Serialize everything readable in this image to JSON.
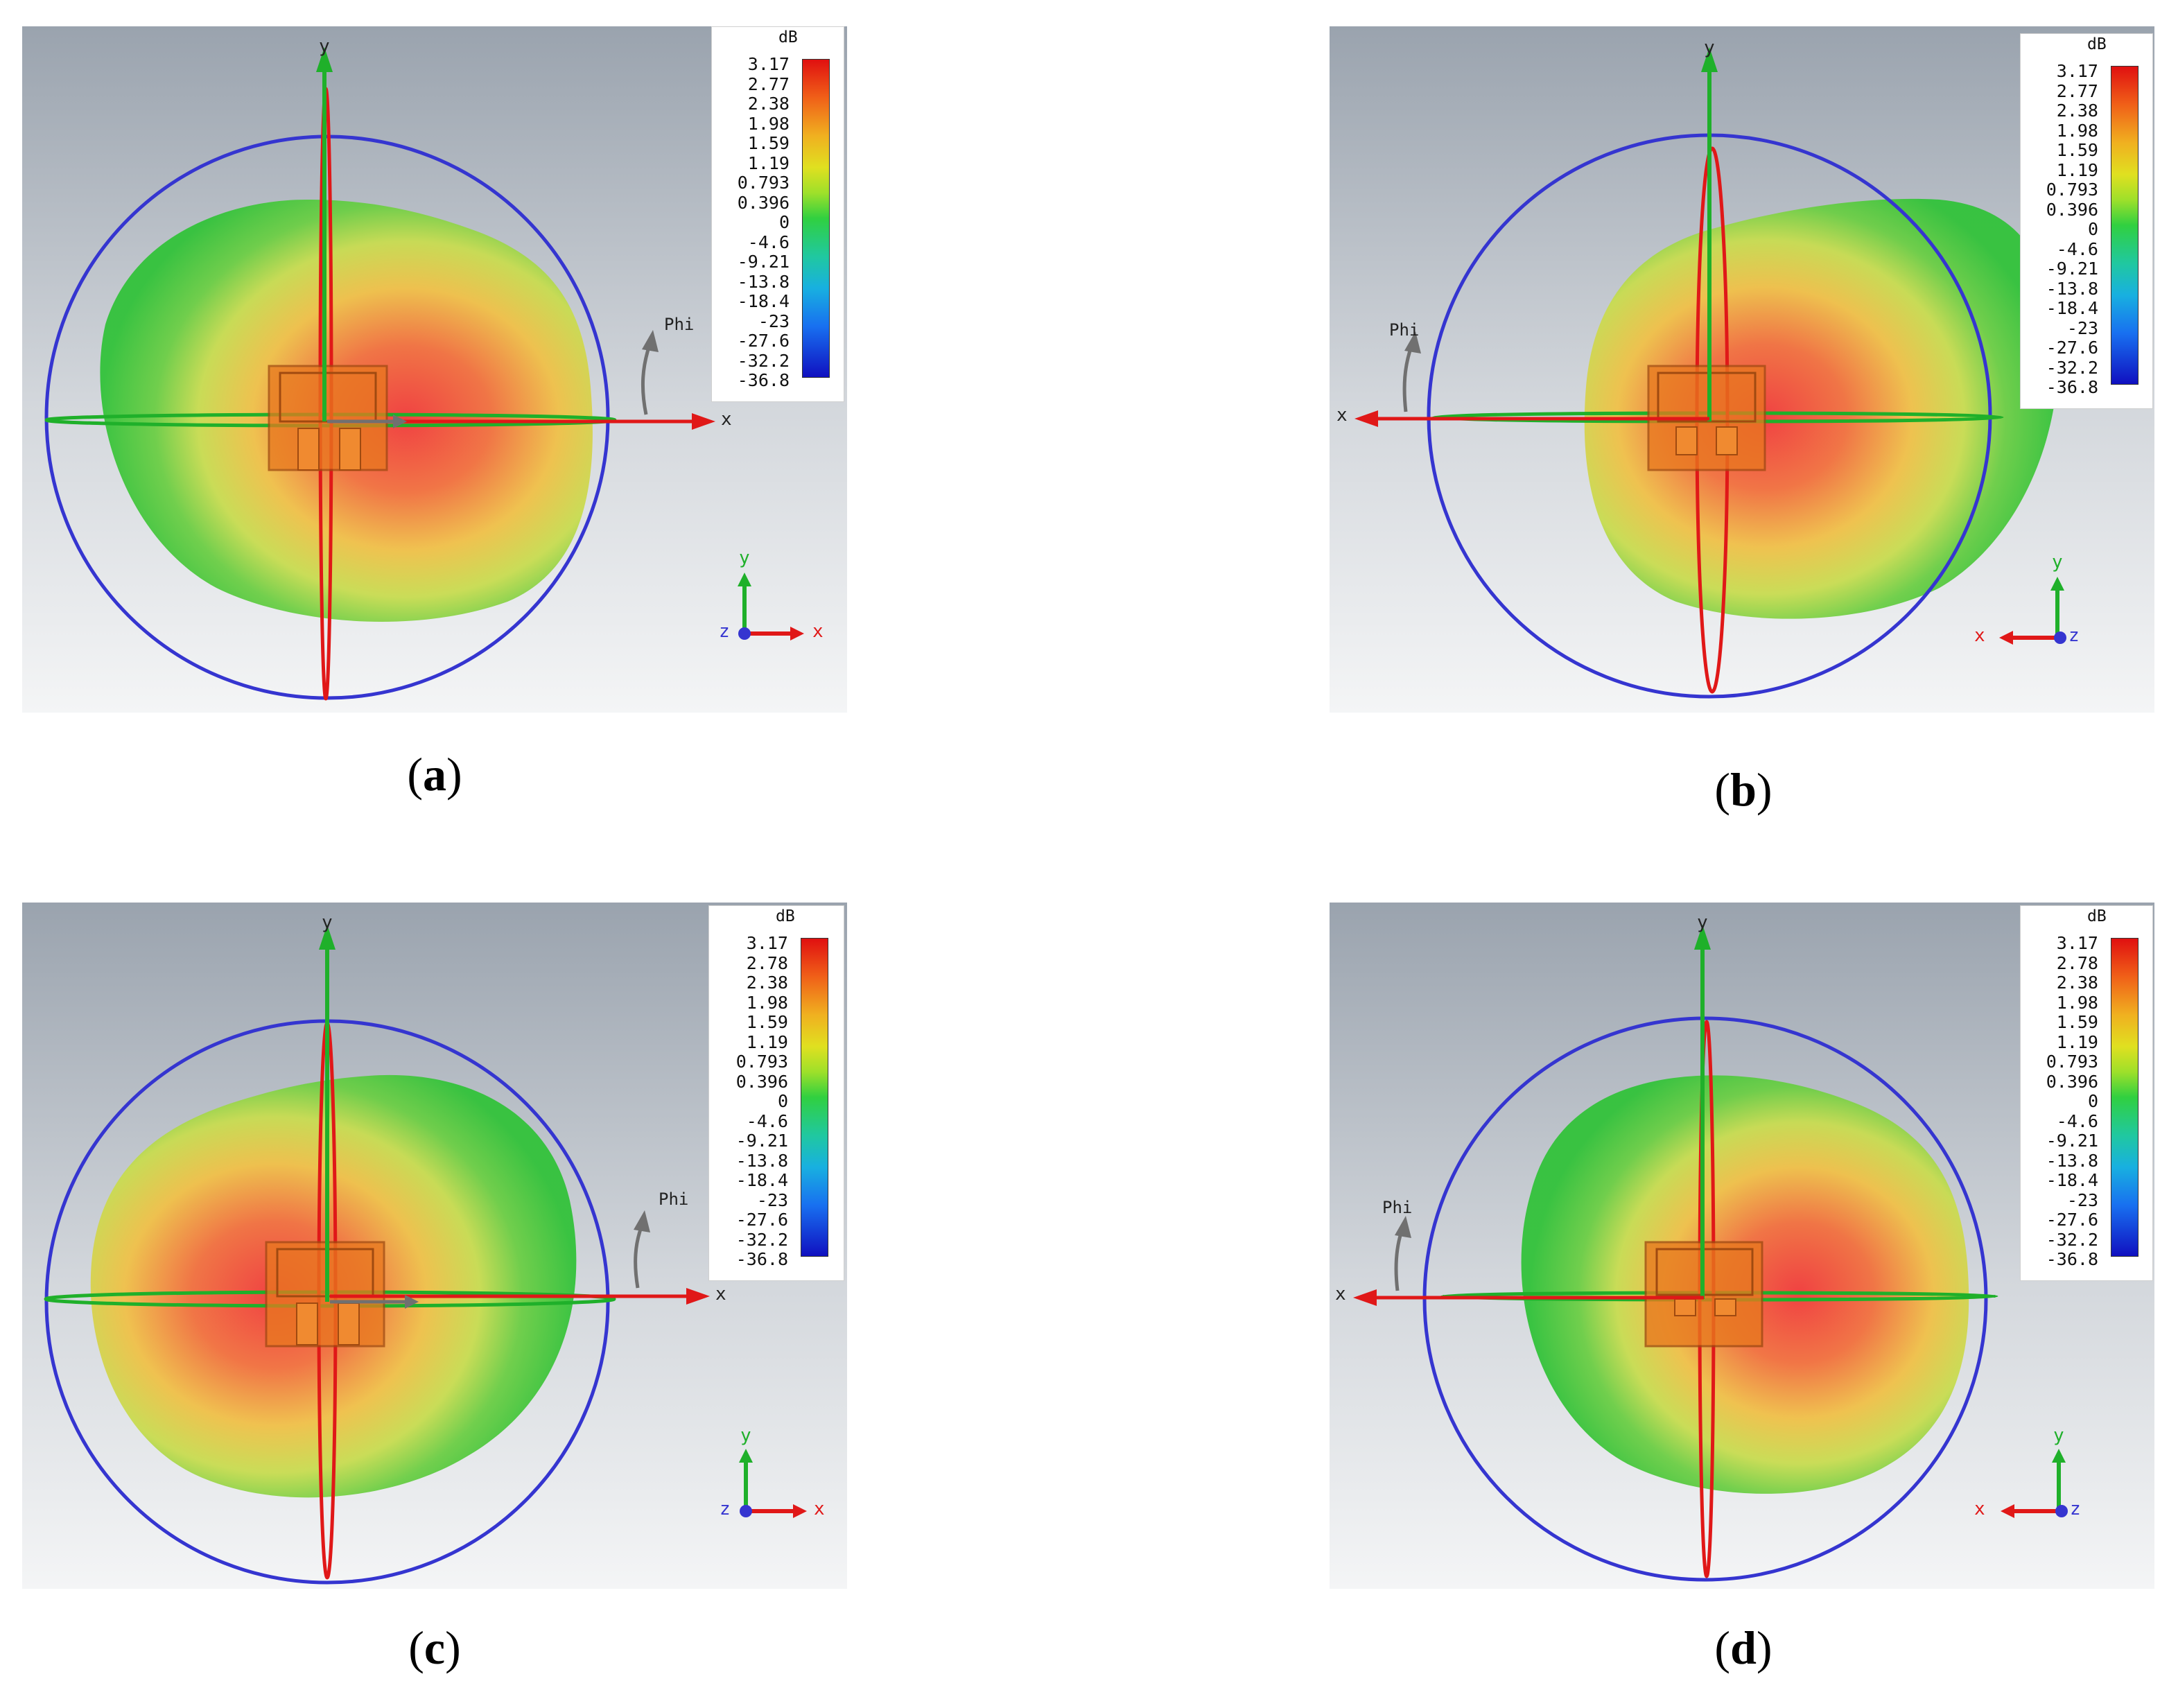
{
  "panels": [
    {
      "id": "a",
      "caption": "a",
      "legend_unit": "dB",
      "legend_values": [
        "3.17",
        "2.77",
        "2.38",
        "1.98",
        "1.59",
        "1.19",
        "0.793",
        "0.396",
        "0",
        "-4.6",
        "-9.21",
        "-13.8",
        "-18.4",
        "-23",
        "-27.6",
        "-32.2",
        "-36.8"
      ],
      "axis_y": "y",
      "axis_x": "x",
      "phi_label": "Phi",
      "mini_y": "y",
      "mini_x": "x",
      "mini_z": "z"
    },
    {
      "id": "b",
      "caption": "b",
      "legend_unit": "dB",
      "legend_values": [
        "3.17",
        "2.77",
        "2.38",
        "1.98",
        "1.59",
        "1.19",
        "0.793",
        "0.396",
        "0",
        "-4.6",
        "-9.21",
        "-13.8",
        "-18.4",
        "-23",
        "-27.6",
        "-32.2",
        "-36.8"
      ],
      "axis_y": "y",
      "axis_x": "x",
      "phi_label": "Phi",
      "mini_y": "y",
      "mini_x": "x",
      "mini_z": "z"
    },
    {
      "id": "c",
      "caption": "c",
      "legend_unit": "dB",
      "legend_values": [
        "3.17",
        "2.78",
        "2.38",
        "1.98",
        "1.59",
        "1.19",
        "0.793",
        "0.396",
        "0",
        "-4.6",
        "-9.21",
        "-13.8",
        "-18.4",
        "-23",
        "-27.6",
        "-32.2",
        "-36.8"
      ],
      "axis_y": "y",
      "axis_x": "x",
      "phi_label": "Phi",
      "mini_y": "y",
      "mini_x": "x",
      "mini_z": "z"
    },
    {
      "id": "d",
      "caption": "d",
      "legend_unit": "dB",
      "legend_values": [
        "3.17",
        "2.78",
        "2.38",
        "1.98",
        "1.59",
        "1.19",
        "0.793",
        "0.396",
        "0",
        "-4.6",
        "-9.21",
        "-13.8",
        "-18.4",
        "-23",
        "-27.6",
        "-32.2",
        "-36.8"
      ],
      "axis_y": "y",
      "axis_x": "x",
      "phi_label": "Phi",
      "mini_y": "y",
      "mini_x": "x",
      "mini_z": "z"
    }
  ],
  "colors": {
    "background_top": "#9aa3ae",
    "background_bottom": "#f2f3f4",
    "pattern_hot": "#f23a3a",
    "pattern_mid": "#f0d040",
    "pattern_edge": "#32c23a",
    "circle": "#3535d0",
    "axis_x": "#e01818",
    "axis_y": "#1fb02a",
    "phi_arrow": "#707070",
    "antenna": "#e8781e"
  }
}
